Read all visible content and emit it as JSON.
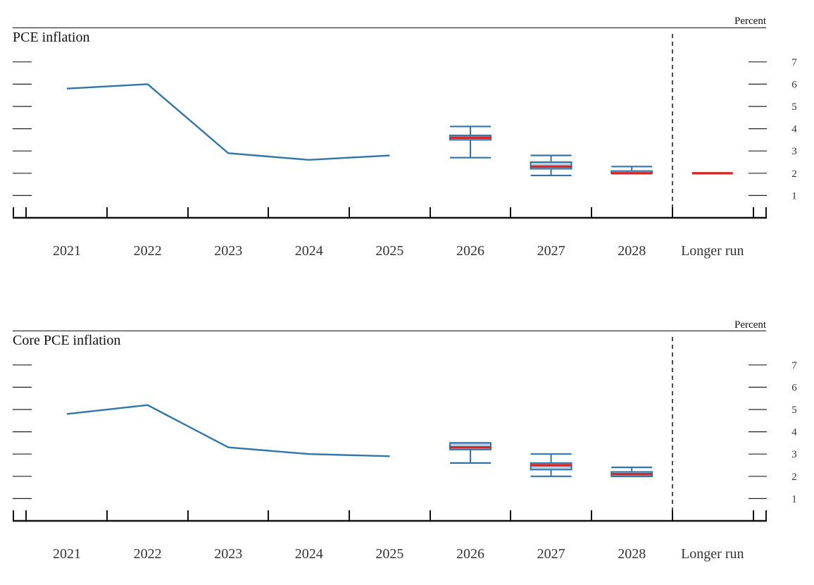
{
  "chart_data": [
    {
      "type": "line",
      "title": "PCE inflation",
      "ylabel": "Percent",
      "ylim": [
        0,
        7
      ],
      "yticks": [
        1,
        2,
        3,
        4,
        5,
        6,
        7
      ],
      "categories": [
        "2021",
        "2022",
        "2023",
        "2024",
        "2025",
        "2026",
        "2027",
        "2028",
        "Longer run"
      ],
      "history": {
        "x": [
          "2021",
          "2022",
          "2023",
          "2024",
          "2025"
        ],
        "values": [
          5.8,
          6.0,
          2.9,
          2.6,
          2.8
        ]
      },
      "projections": [
        {
          "x": "2026",
          "low": 2.7,
          "q1": 3.5,
          "median": 3.6,
          "q3": 3.7,
          "high": 4.1
        },
        {
          "x": "2027",
          "low": 1.9,
          "q1": 2.2,
          "median": 2.3,
          "q3": 2.5,
          "high": 2.8
        },
        {
          "x": "2028",
          "low": 2.0,
          "q1": 2.0,
          "median": 2.0,
          "q3": 2.1,
          "high": 2.3
        },
        {
          "x": "Longer run",
          "low": 2.0,
          "q1": 2.0,
          "median": 2.0,
          "q3": 2.0,
          "high": 2.0
        }
      ],
      "colors": {
        "history": "#2e75a8",
        "box_fill": "#b7cde0",
        "box_edge": "#2e75a8",
        "median": "#d62728"
      },
      "grid": false
    },
    {
      "type": "line",
      "title": "Core PCE inflation",
      "ylabel": "Percent",
      "ylim": [
        0,
        7
      ],
      "yticks": [
        1,
        2,
        3,
        4,
        5,
        6,
        7
      ],
      "categories": [
        "2021",
        "2022",
        "2023",
        "2024",
        "2025",
        "2026",
        "2027",
        "2028",
        "Longer run"
      ],
      "history": {
        "x": [
          "2021",
          "2022",
          "2023",
          "2024",
          "2025"
        ],
        "values": [
          4.8,
          5.2,
          3.3,
          3.0,
          2.9
        ]
      },
      "projections": [
        {
          "x": "2026",
          "low": 2.6,
          "q1": 3.2,
          "median": 3.3,
          "q3": 3.5,
          "high": 3.5
        },
        {
          "x": "2027",
          "low": 2.0,
          "q1": 2.3,
          "median": 2.5,
          "q3": 2.6,
          "high": 3.0
        },
        {
          "x": "2028",
          "low": 2.0,
          "q1": 2.0,
          "median": 2.1,
          "q3": 2.2,
          "high": 2.4
        }
      ],
      "colors": {
        "history": "#2e75a8",
        "box_fill": "#b7cde0",
        "box_edge": "#2e75a8",
        "median": "#d62728"
      },
      "grid": false
    }
  ]
}
